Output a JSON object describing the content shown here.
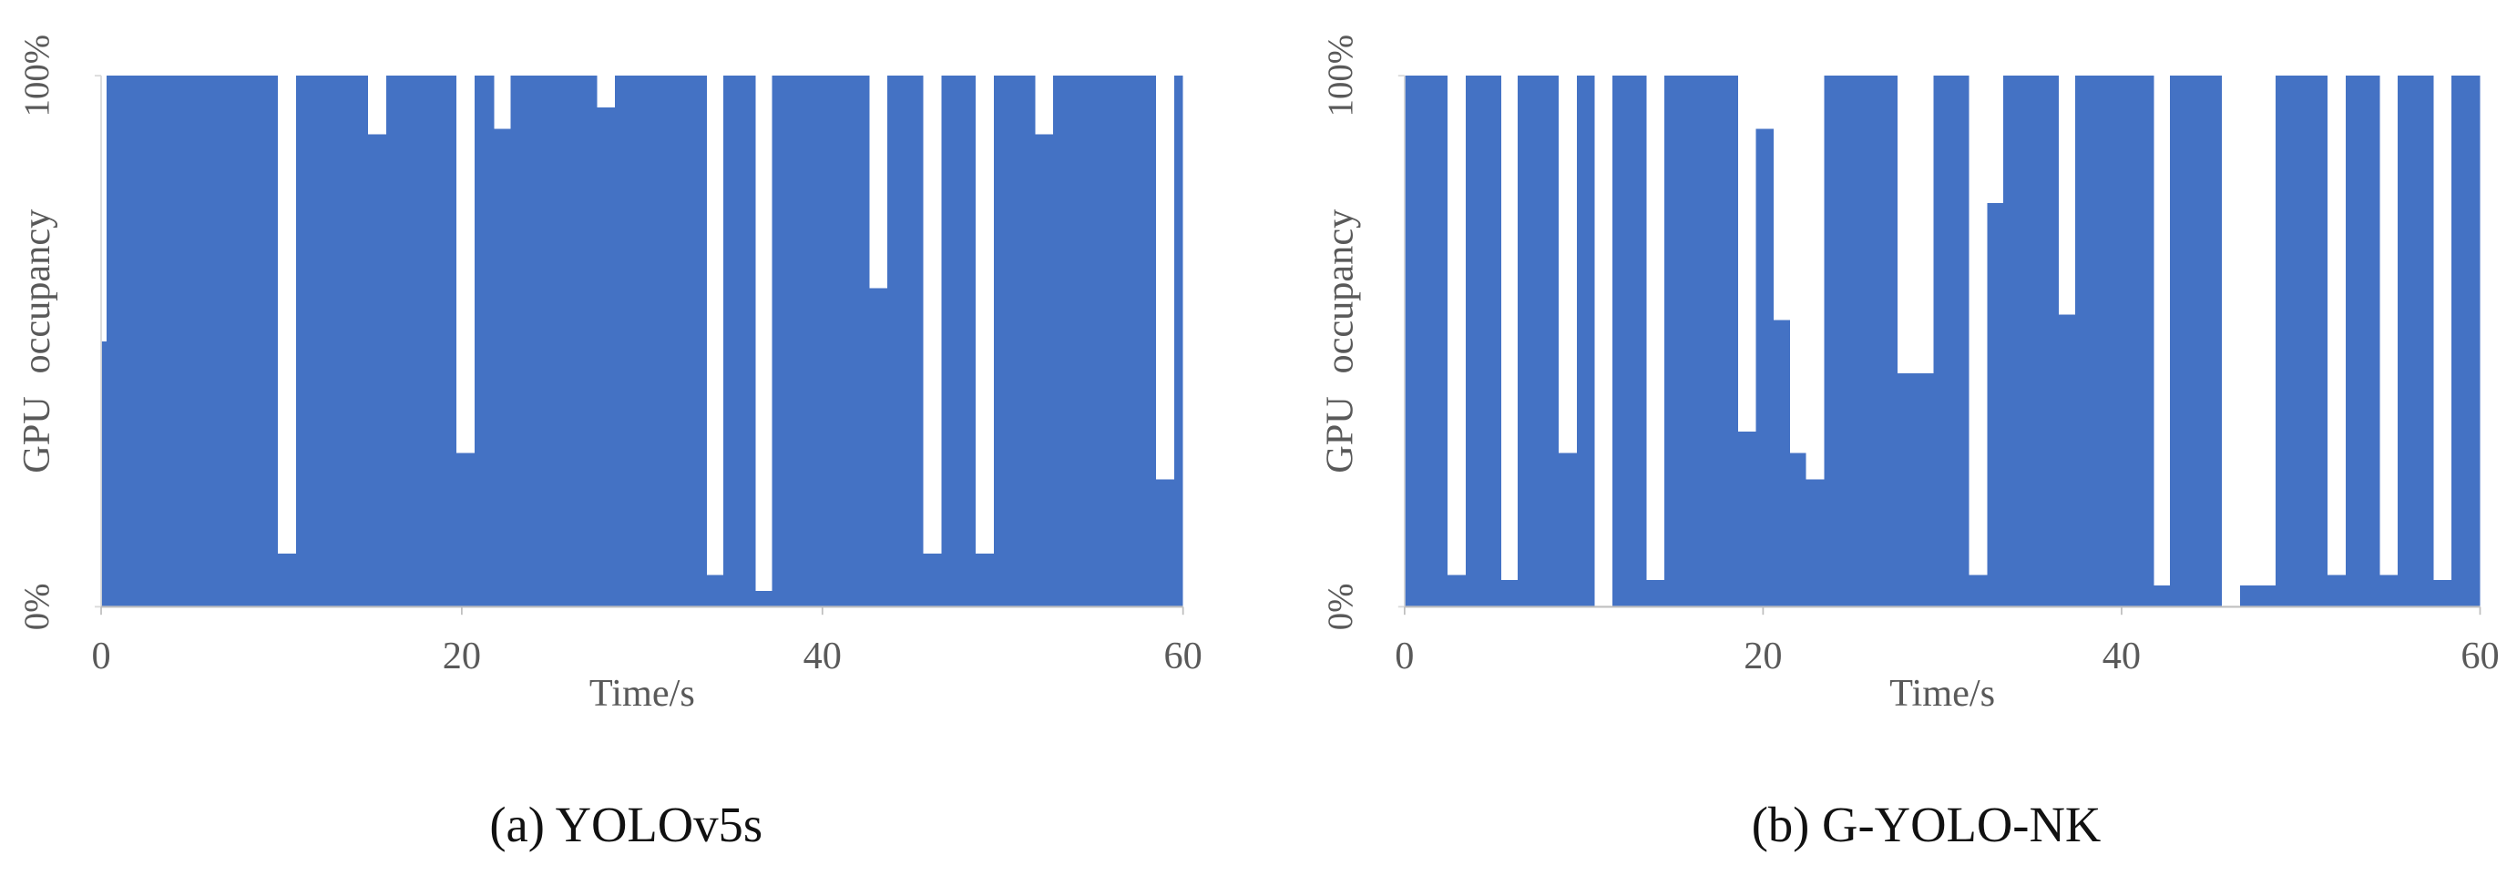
{
  "chart_data": [
    {
      "type": "histogram",
      "title": "(a) YOLOv5s",
      "xlabel": "Time/s",
      "ylabel": "GPU occupancy",
      "color": "#4472c4",
      "bins": [
        0,
        0.3,
        9.8,
        10.8,
        14.8,
        15.8,
        19.7,
        20.7,
        21.8,
        22.7,
        27.5,
        28.5,
        33.6,
        34.5,
        36.3,
        37.2,
        42.6,
        43.6,
        45.6,
        46.6,
        48.5,
        49.5,
        51.8,
        52.8,
        58.5,
        59.5,
        60
      ],
      "values": [
        50,
        100,
        10,
        100,
        89,
        100,
        29,
        100,
        90,
        100,
        94,
        100,
        6,
        100,
        3,
        100,
        60,
        100,
        10,
        100,
        10,
        100,
        89,
        100,
        24,
        100
      ],
      "xlim": [
        0,
        60
      ],
      "xticks": [
        0,
        20,
        40,
        60
      ],
      "ylim": [
        0,
        100
      ],
      "yticks": [
        {
          "value": 0,
          "label": "0%"
        },
        {
          "value": 100,
          "label": "100%"
        }
      ]
    },
    {
      "type": "histogram",
      "title": "(b) G-YOLO-NK",
      "xlabel": "Time/s",
      "ylabel": "GPU occupancy",
      "color": "#4472c4",
      "bins": [
        0,
        2.4,
        3.4,
        5.4,
        6.3,
        8.6,
        9.6,
        10.6,
        11.6,
        13.5,
        14.5,
        18.6,
        19.6,
        20.6,
        21.5,
        22.4,
        23.4,
        27.5,
        29.5,
        31.5,
        32.5,
        33.4,
        36.5,
        37.4,
        41.8,
        42.7,
        45.6,
        46.6,
        48.6,
        51.5,
        52.5,
        54.4,
        55.4,
        57.4,
        58.4,
        60
      ],
      "values": [
        100,
        6,
        100,
        5,
        100,
        29,
        100,
        0,
        100,
        5,
        100,
        33,
        90,
        54,
        29,
        24,
        100,
        44,
        100,
        6,
        76,
        100,
        55,
        100,
        4,
        100,
        0,
        4,
        100,
        6,
        100,
        6,
        100,
        5,
        100
      ],
      "xlim": [
        0,
        60
      ],
      "xticks": [
        0,
        20,
        40,
        60
      ],
      "ylim": [
        0,
        100
      ],
      "yticks": [
        {
          "value": 0,
          "label": "0%"
        },
        {
          "value": 100,
          "label": "100%"
        }
      ]
    }
  ]
}
